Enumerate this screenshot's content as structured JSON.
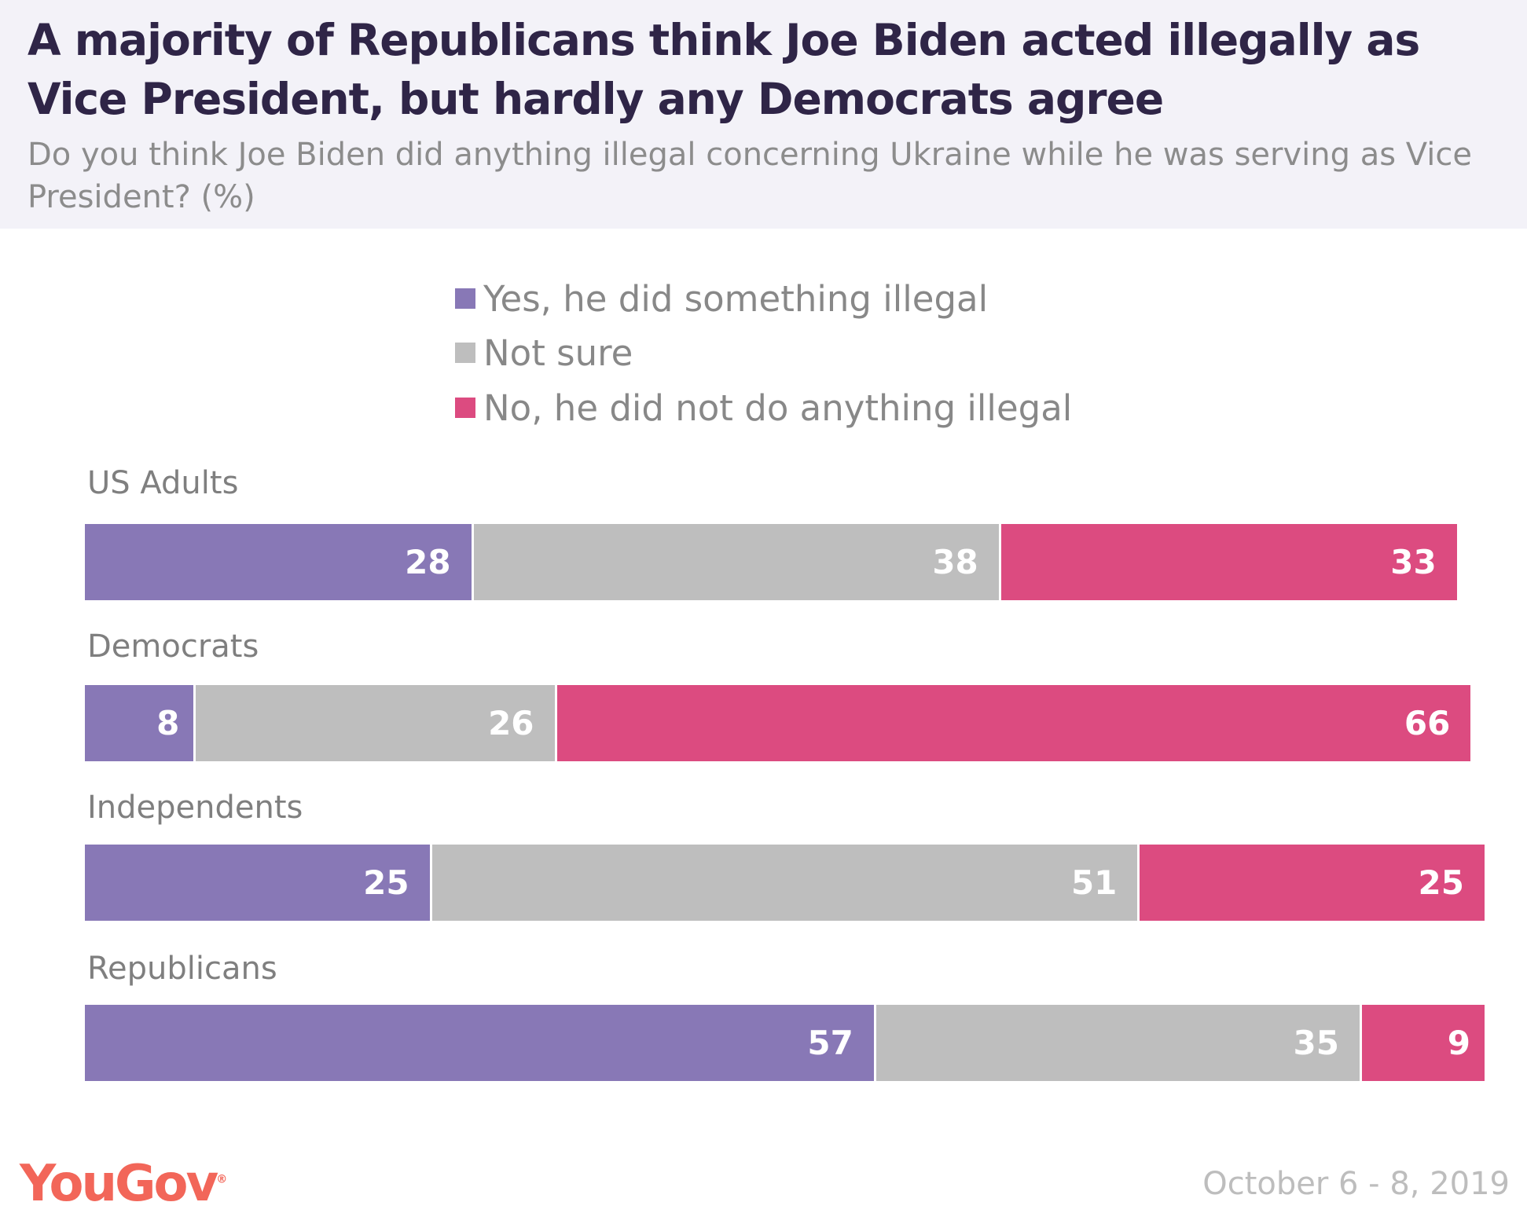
{
  "chart_data": {
    "type": "bar",
    "orientation": "horizontal",
    "stacked": true,
    "title": "A majority of Republicans think Joe Biden acted illegally as Vice President, but hardly any Democrats agree",
    "subtitle": "Do you think Joe Biden did anything illegal concerning Ukraine while he was serving as Vice President? (%)",
    "categories": [
      "US Adults",
      "Democrats",
      "Independents",
      "Republicans"
    ],
    "series": [
      {
        "name": "Yes, he did something illegal",
        "color": "#8878b6",
        "values": [
          28,
          8,
          25,
          57
        ]
      },
      {
        "name": "Not sure",
        "color": "#bebebe",
        "values": [
          38,
          26,
          51,
          35
        ]
      },
      {
        "name": "No, he did not do anything illegal",
        "color": "#dc4b80",
        "values": [
          33,
          66,
          25,
          9
        ]
      }
    ],
    "legend_position": "top",
    "grid": false
  },
  "footer": {
    "brand": "YouGov",
    "date": "October 6 - 8, 2019"
  }
}
